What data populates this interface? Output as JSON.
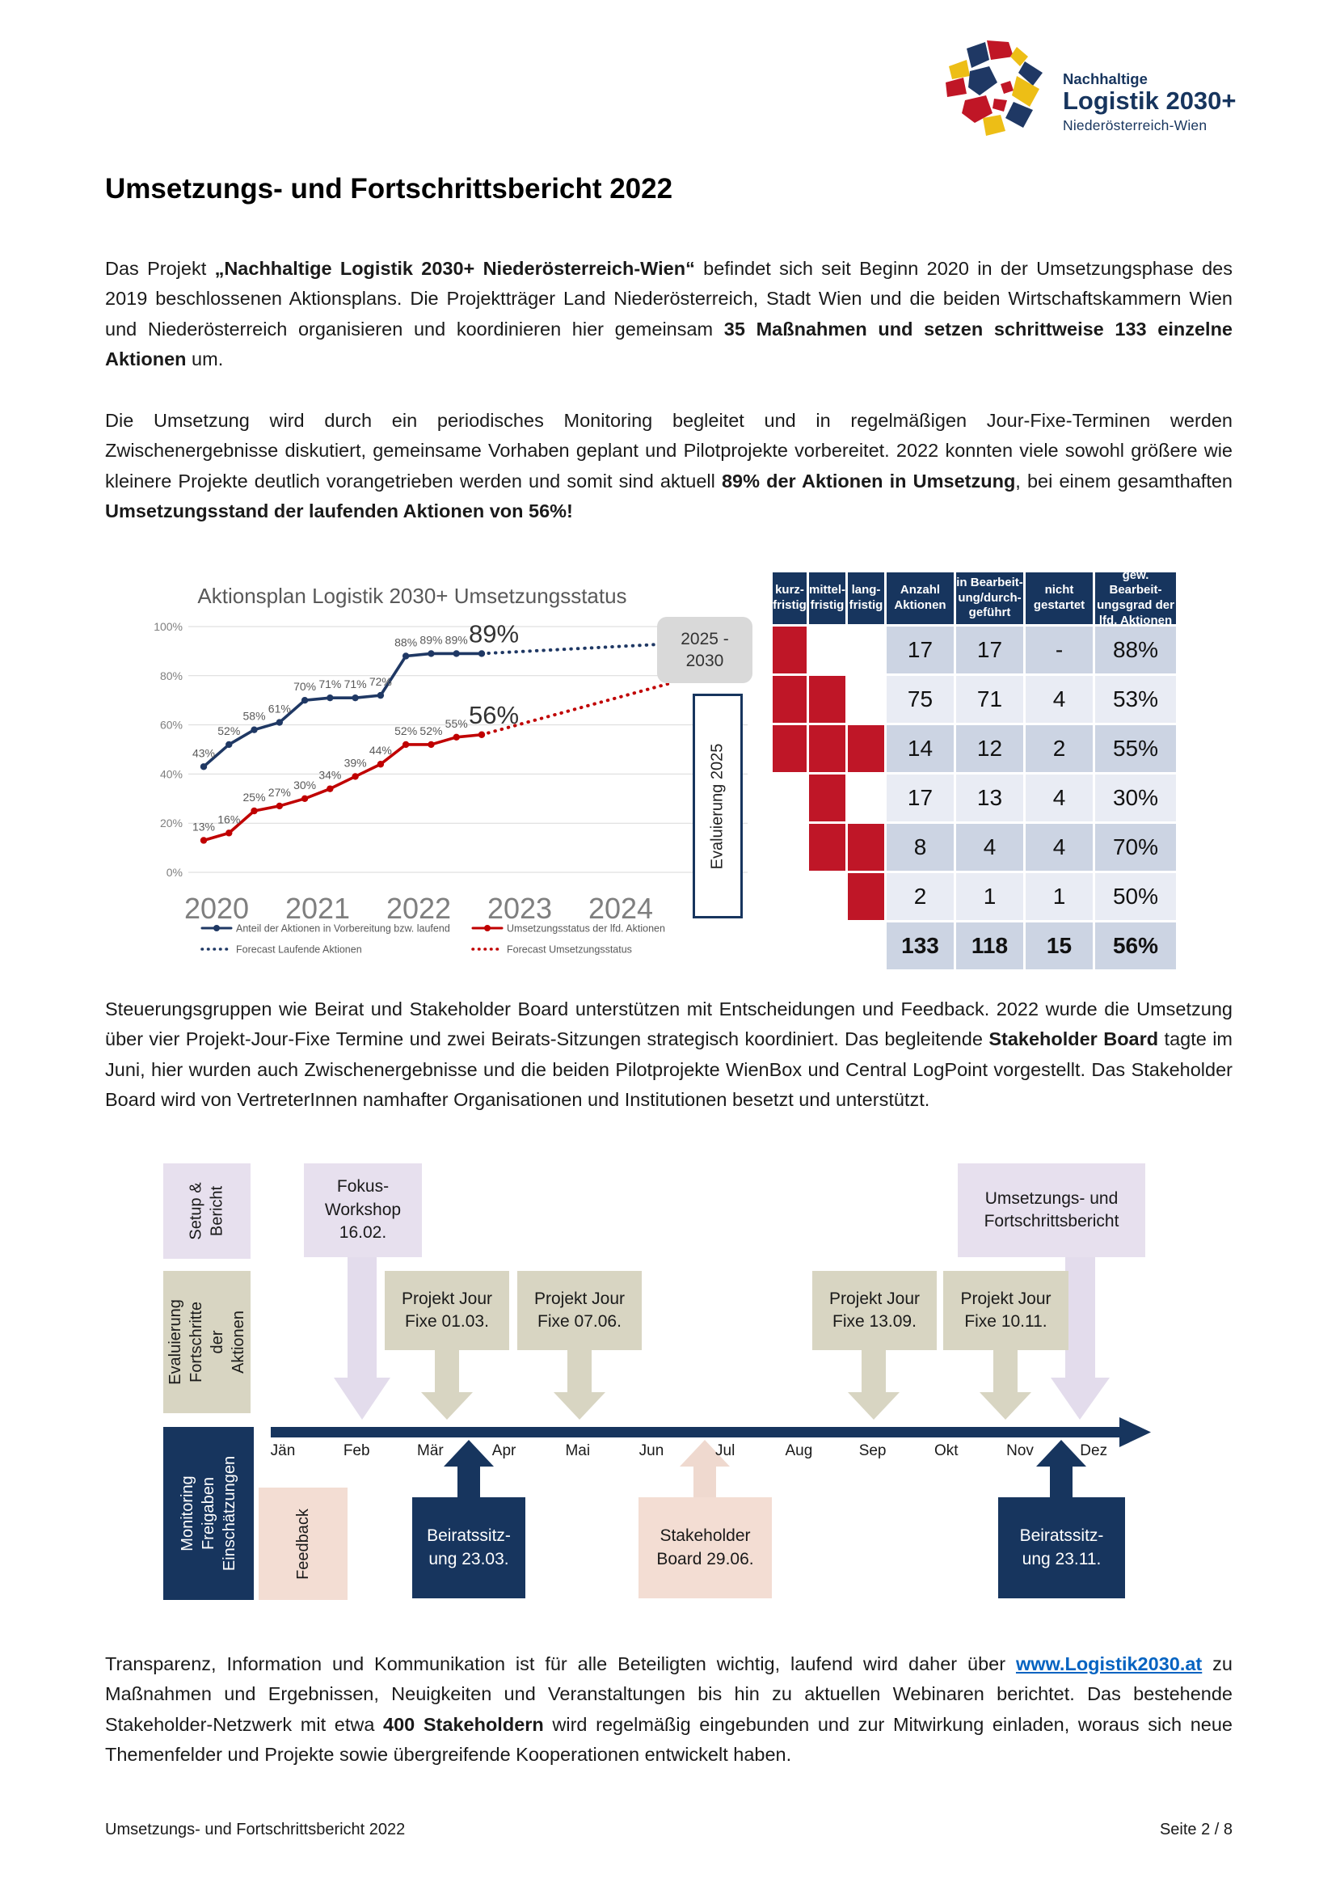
{
  "page": {
    "title": "Umsetzungs- und Fortschrittsbericht 2022",
    "footer_left": "Umsetzungs- und Fortschrittsbericht 2022",
    "footer_right": "Seite 2 / 8"
  },
  "logo": {
    "line1": "Nachhaltige",
    "line2": "Logistik 2030+",
    "line3": "Niederösterreich-Wien"
  },
  "colors": {
    "navy": "#17355e",
    "chart_blue": "#1f3864",
    "chart_red": "#c00000",
    "table_red": "#bf1627",
    "purple": "#e7e0ee",
    "tan": "#d8d5c2",
    "pink": "#f3ddd3",
    "link_blue": "#0563c1"
  },
  "paragraphs": {
    "p1": [
      {
        "t": "Das Projekt "
      },
      {
        "t": "„Nachhaltige Logistik 2030+ Niederösterreich-Wien“",
        "b": true
      },
      {
        "t": " befindet sich seit Beginn 2020 in der Umsetzungsphase des 2019 beschlossenen Aktionsplans. Die Projektträger Land Niederösterreich, Stadt Wien und die beiden Wirtschaftskammern Wien und Niederösterreich organisieren und koordinieren hier gemeinsam "
      },
      {
        "t": "35 Maßnahmen und setzen schrittweise 133 einzelne Aktionen",
        "b": true
      },
      {
        "t": " um."
      }
    ],
    "p2": [
      {
        "t": "Die Umsetzung wird durch ein periodisches Monitoring begleitet und in regelmäßigen Jour-Fixe-Terminen werden Zwischenergebnisse diskutiert, gemeinsame Vorhaben geplant und Pilotprojekte vorbereitet. 2022 konnten viele sowohl größere wie kleinere Projekte deutlich vorangetrieben werden und somit sind aktuell "
      },
      {
        "t": "89% der Aktionen in Umsetzung",
        "b": true
      },
      {
        "t": ", bei einem gesamthaften "
      },
      {
        "t": "Umsetzungsstand der laufenden Aktionen von 56%!",
        "b": true
      }
    ],
    "p3": [
      {
        "t": "Steuerungsgruppen wie Beirat und Stakeholder Board unterstützen mit Entscheidungen und Feedback. 2022 wurde die Umsetzung über vier Projekt-Jour-Fixe Termine und zwei Beirats-Sitzungen strategisch koordiniert. Das begleitende "
      },
      {
        "t": "Stakeholder Board",
        "b": true
      },
      {
        "t": " tagte im Juni, hier wurden auch Zwischenergebnisse und die beiden Pilotprojekte WienBox und Central LogPoint vorgestellt. Das Stakeholder Board wird von VertreterInnen namhafter Organisationen und Institutionen besetzt und unterstützt."
      }
    ],
    "p4": [
      {
        "t": "Transparenz, Information und Kommunikation ist für alle Beteiligten wichtig, laufend wird daher über "
      },
      {
        "t": "www.Logistik2030.at",
        "link": true
      },
      {
        "t": " zu Maßnahmen und Ergebnissen, Neuigkeiten und Veranstaltungen bis hin zu aktuellen Webinaren berichtet. Das bestehende Stakeholder-Netzwerk mit etwa "
      },
      {
        "t": "400 Stakeholdern",
        "b": true
      },
      {
        "t": " wird regelmäßig eingebunden und zur Mitwirkung einladen, woraus sich neue Themenfelder und Projekte sowie übergreifende Kooperationen entwickelt haben."
      }
    ]
  },
  "chart_data": {
    "type": "line",
    "title": "Aktionsplan Logistik 2030+ Umsetzungsstatus",
    "x_tick_years": [
      "2020",
      "2021",
      "2022",
      "2023",
      "2024"
    ],
    "x_unit": "quarter",
    "y_ticks": [
      "0%",
      "20%",
      "40%",
      "60%",
      "80%",
      "100%"
    ],
    "ylim": [
      0,
      100
    ],
    "grid": true,
    "legend_position": "bottom",
    "series": [
      {
        "name": "Anteil der Aktionen in Vorbereitung bzw. laufend",
        "color": "#1f3864",
        "values": [
          43,
          52,
          58,
          61,
          70,
          71,
          71,
          72,
          88,
          89,
          89,
          89
        ],
        "end_label": "89%"
      },
      {
        "name": "Umsetzungsstatus der lfd. Aktionen",
        "color": "#c00000",
        "values": [
          13,
          16,
          25,
          27,
          30,
          34,
          39,
          44,
          52,
          52,
          55,
          56
        ],
        "end_label": "56%"
      }
    ],
    "forecasts": [
      {
        "name": "Forecast Laufende Aktionen",
        "color": "#1f3864",
        "from": 89,
        "to": 93
      },
      {
        "name": "Forecast Umsetzungsstatus",
        "color": "#c00000",
        "from": 56,
        "to": 77
      }
    ],
    "annotations": {
      "future_box": "2025 -\n2030",
      "evaluation_box": "Evaluierung 2025"
    }
  },
  "status_table": {
    "headers": [
      "kurz-\nfristig",
      "mittel-\nfristig",
      "lang-\nfristig",
      "Anzahl\nAktionen",
      "in Bearbeit-\nung/durch-\ngeführt",
      "nicht\ngestartet",
      "gew. Bearbeit-\nungsgrad der\nlfd. Aktionen"
    ],
    "rows": [
      {
        "kurz": true,
        "mittel": false,
        "lang": false,
        "values": [
          "17",
          "17",
          "-",
          "88%"
        ]
      },
      {
        "kurz": true,
        "mittel": true,
        "lang": false,
        "values": [
          "75",
          "71",
          "4",
          "53%"
        ]
      },
      {
        "kurz": true,
        "mittel": true,
        "lang": true,
        "values": [
          "14",
          "12",
          "2",
          "55%"
        ]
      },
      {
        "kurz": false,
        "mittel": true,
        "lang": false,
        "values": [
          "17",
          "13",
          "4",
          "30%"
        ]
      },
      {
        "kurz": false,
        "mittel": true,
        "lang": true,
        "values": [
          "8",
          "4",
          "4",
          "70%"
        ]
      },
      {
        "kurz": false,
        "mittel": false,
        "lang": true,
        "values": [
          "2",
          "1",
          "1",
          "50%"
        ]
      }
    ],
    "total": [
      "133",
      "118",
      "15",
      "56%"
    ]
  },
  "timeline": {
    "months": [
      "Jän",
      "Feb",
      "Mär",
      "Apr",
      "Mai",
      "Jun",
      "Jul",
      "Aug",
      "Sep",
      "Okt",
      "Nov",
      "Dez"
    ],
    "setup_label": "Setup &\nBericht",
    "eval_label": "Evaluierung\nFortschritte\nder Aktionen",
    "monitoring_label": "Monitoring\nFreigaben\nEinschätzungen",
    "feedback_label": "Feedback",
    "fokus_workshop": "Fokus-\nWorkshop\n16.02.",
    "jour_fixe_1": "Projekt Jour\nFixe 01.03.",
    "jour_fixe_2": "Projekt Jour\nFixe 07.06.",
    "jour_fixe_3": "Projekt Jour\nFixe 13.09.",
    "jour_fixe_4": "Projekt Jour\nFixe 10.11.",
    "bericht_box": "Umsetzungs- und\nFortschrittsbericht",
    "beirat_1": "Beiratssitz-\nung 23.03.",
    "stakeholder": "Stakeholder\nBoard 29.06.",
    "beirat_2": "Beiratssitz-\nung 23.11."
  }
}
